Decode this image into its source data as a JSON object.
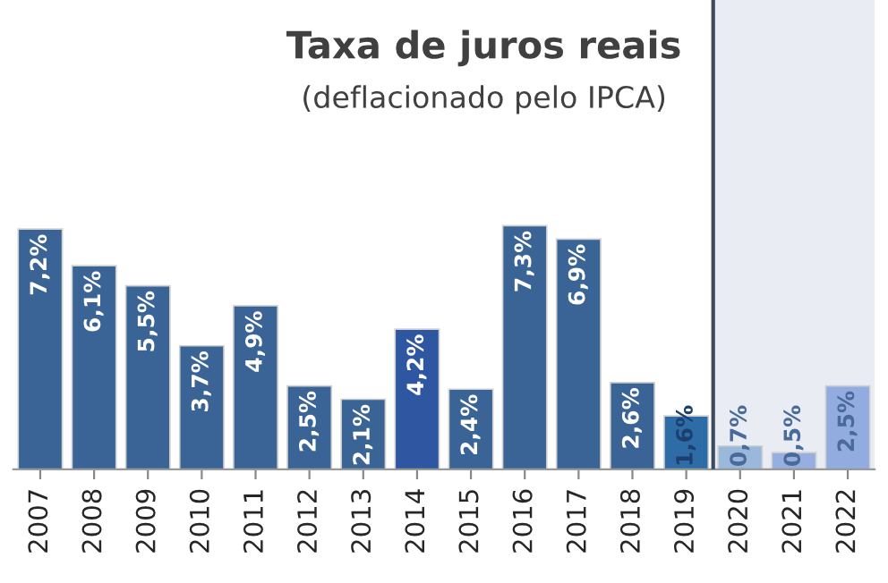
{
  "chart_data": {
    "type": "bar",
    "title": "Taxa de juros reais",
    "subtitle": "(deflacionado pelo IPCA)",
    "categories": [
      "2007",
      "2008",
      "2009",
      "2010",
      "2011",
      "2012",
      "2013",
      "2014",
      "2015",
      "2016",
      "2017",
      "2018",
      "2019",
      "2020",
      "2021",
      "2022"
    ],
    "values": [
      7.2,
      6.1,
      5.5,
      3.7,
      4.9,
      2.5,
      2.1,
      4.2,
      2.4,
      7.3,
      6.9,
      2.6,
      1.6,
      0.7,
      0.5,
      2.5
    ],
    "colors": [
      "#3a6496",
      "#3a6496",
      "#3a6496",
      "#3a6496",
      "#3a6496",
      "#3a6496",
      "#3a6496",
      "#2f56a0",
      "#3a6496",
      "#3a6496",
      "#3a6496",
      "#3a6496",
      "#2e6ca8",
      "#9ab8dc",
      "#97aee0",
      "#93acdf"
    ],
    "value_labels": [
      "7,2%",
      "6,1%",
      "5,5%",
      "3,7%",
      "4,9%",
      "2,5%",
      "2,1%",
      "4,2%",
      "2,4%",
      "7,3%",
      "6,9%",
      "2,6%",
      "1,6%",
      "0,7%",
      "0,5%",
      "2,5%"
    ],
    "bands": [
      {
        "axis": "x",
        "from": "2020",
        "to": "2022",
        "color": "#e9edf3"
      }
    ],
    "grid": false,
    "legend": false,
    "tick_labels": "x"
  }
}
